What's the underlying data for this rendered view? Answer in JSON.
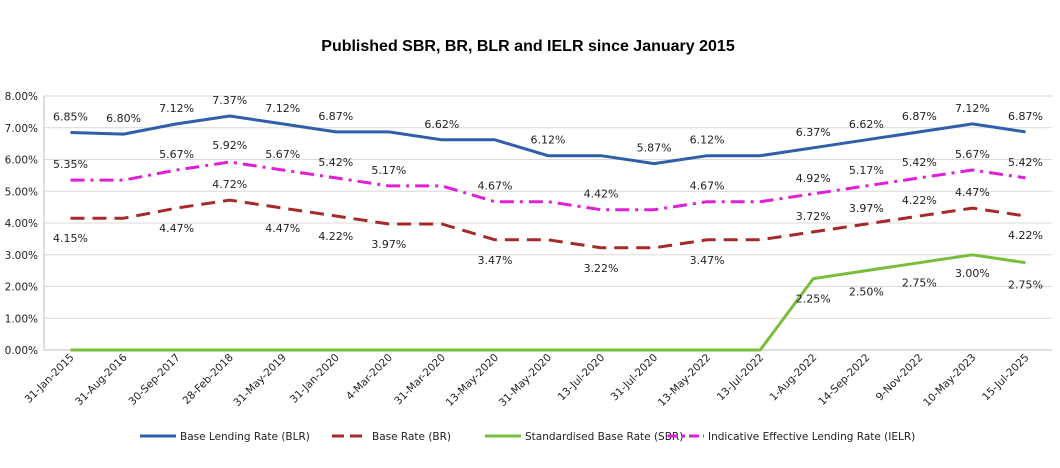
{
  "chart_data": {
    "type": "line",
    "title": "Published SBR, BR, BLR and IELR since January 2015",
    "categories": [
      "31-Jan-2015",
      "31-Aug-2016",
      "30-Sep-2017",
      "28-Feb-2018",
      "31-May-2019",
      "31-Jan-2020",
      "4-Mar-2020",
      "31-Mar-2020",
      "13-May-2020",
      "31-May-2020",
      "13-Jul-2020",
      "31-Jul-2020",
      "13-May-2022",
      "13-Jul-2022",
      "1-Aug-2022",
      "14-Sep-2022",
      "9-Nov-2022",
      "10-May-2023",
      "15-Jul-2025"
    ],
    "y_ticks": [
      "0.00%",
      "1.00%",
      "2.00%",
      "3.00%",
      "4.00%",
      "5.00%",
      "6.00%",
      "7.00%",
      "8.00%"
    ],
    "ylim": [
      0,
      8
    ],
    "grid": true,
    "legend_position": "bottom",
    "series": [
      {
        "name": "Base Lending Rate (BLR)",
        "color": "#2e5fa8",
        "dash": "solid",
        "values": [
          6.85,
          6.8,
          7.12,
          7.37,
          7.12,
          6.87,
          6.87,
          6.62,
          6.62,
          6.12,
          6.12,
          5.87,
          6.12,
          6.12,
          6.37,
          6.62,
          6.87,
          7.12,
          6.87
        ],
        "labels": [
          "6.85%",
          "6.80%",
          "7.12%",
          "7.37%",
          "7.12%",
          "6.87%",
          null,
          "6.62%",
          null,
          "6.12%",
          null,
          "5.87%",
          "6.12%",
          null,
          "6.37%",
          "6.62%",
          "6.87%",
          "7.12%",
          "6.87%"
        ]
      },
      {
        "name": "Base Rate (BR)",
        "color": "#a52a2a",
        "dash": "longdash",
        "values": [
          4.15,
          4.15,
          4.47,
          4.72,
          4.47,
          4.22,
          3.97,
          3.97,
          3.47,
          3.47,
          3.22,
          3.22,
          3.47,
          3.47,
          3.72,
          3.97,
          4.22,
          4.47,
          4.22
        ],
        "labels": [
          "4.15%",
          null,
          "4.47%",
          "4.72%",
          "4.47%",
          "4.22%",
          "3.97%",
          null,
          "3.47%",
          null,
          "3.22%",
          null,
          "3.47%",
          null,
          "3.72%",
          "3.97%",
          "4.22%",
          "4.47%",
          "4.22%"
        ]
      },
      {
        "name": "Standardised Base Rate (SBR)",
        "color": "#78be3c",
        "dash": "solid",
        "values": [
          0,
          0,
          0,
          0,
          0,
          0,
          0,
          0,
          0,
          0,
          0,
          0,
          0,
          0,
          2.25,
          2.5,
          2.75,
          3.0,
          2.75
        ],
        "labels": [
          null,
          null,
          null,
          null,
          null,
          null,
          null,
          null,
          null,
          null,
          null,
          null,
          null,
          null,
          "2.25%",
          "2.50%",
          "2.75%",
          "3.00%",
          "2.75%"
        ]
      },
      {
        "name": "Indicative Effective Lending Rate (IELR)",
        "color": "#e020d8",
        "dash": "dashdot",
        "values": [
          5.35,
          5.35,
          5.67,
          5.92,
          5.67,
          5.42,
          5.17,
          5.17,
          4.67,
          4.67,
          4.42,
          4.42,
          4.67,
          4.67,
          4.92,
          5.17,
          5.42,
          5.67,
          5.42
        ],
        "labels": [
          "5.35%",
          null,
          "5.67%",
          "5.92%",
          "5.67%",
          "5.42%",
          "5.17%",
          null,
          "4.67%",
          null,
          "4.42%",
          null,
          "4.67%",
          null,
          "4.92%",
          "5.17%",
          "5.42%",
          "5.67%",
          "5.42%"
        ]
      }
    ]
  }
}
